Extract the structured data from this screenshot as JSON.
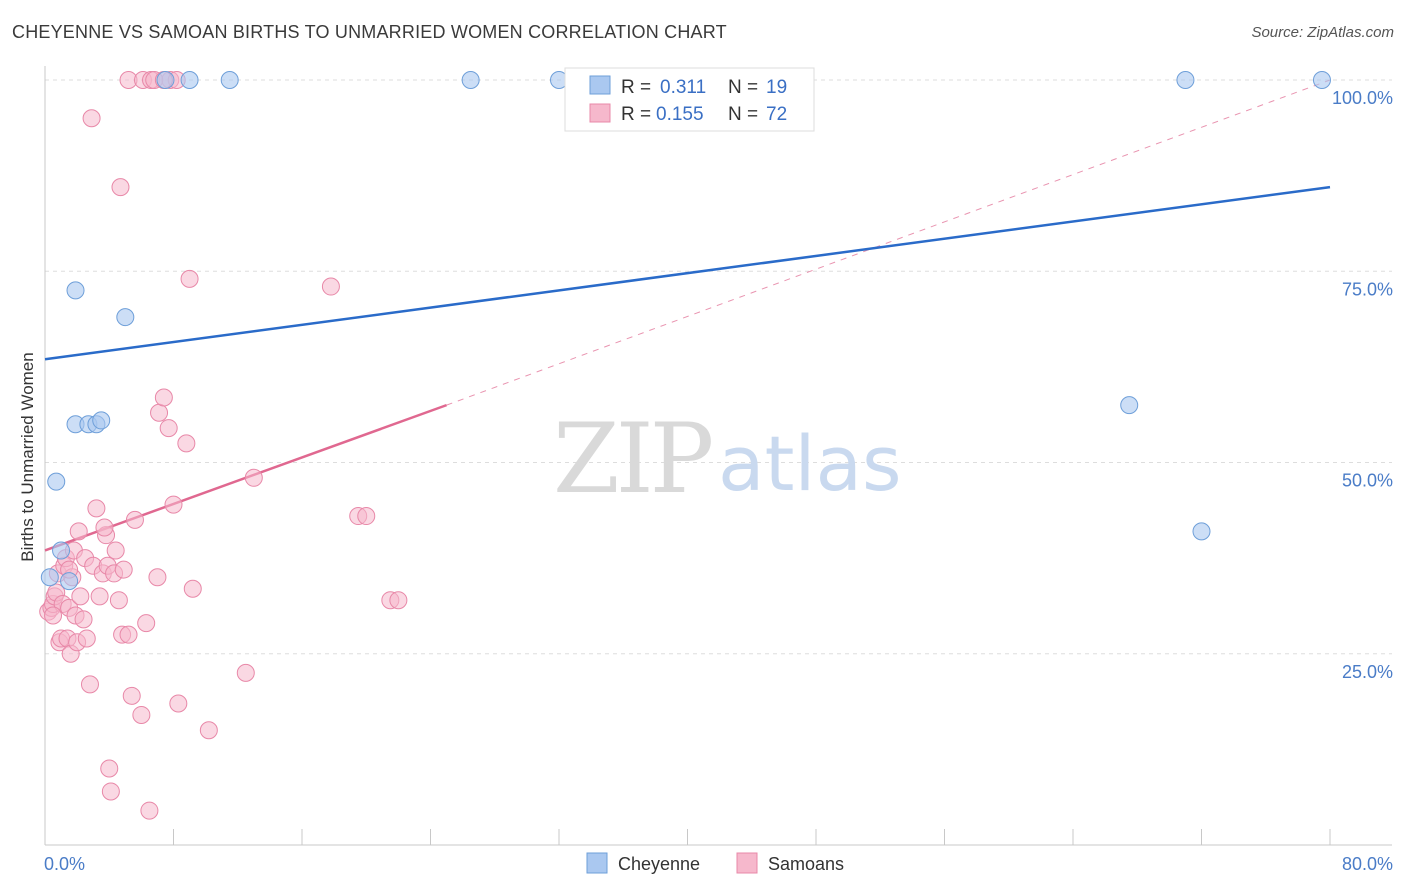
{
  "title": "CHEYENNE VS SAMOAN BIRTHS TO UNMARRIED WOMEN CORRELATION CHART",
  "source": "Source: ZipAtlas.com",
  "watermark": {
    "zip": "ZIP",
    "atlas": "atlas"
  },
  "colors": {
    "cheyenne_fill": "#aac8f0",
    "cheyenne_stroke": "#6e9fd9",
    "cheyenne_line": "#2a6bc9",
    "samoan_fill": "#f6b8cc",
    "samoan_stroke": "#e888a8",
    "samoan_line": "#e06890",
    "axis_label": "#4a7cc7",
    "grid": "#dddddd"
  },
  "legend": {
    "rows": [
      {
        "r_label": "R = ",
        "r_value": "0.311",
        "n_label": "N = ",
        "n_value": "19"
      },
      {
        "r_label": "R = ",
        "r_value": "0.155",
        "n_label": "N = ",
        "n_value": "72"
      }
    ]
  },
  "bottom_legend": [
    "Cheyenne",
    "Samoans"
  ],
  "chart_data": {
    "type": "scatter",
    "title": "CHEYENNE VS SAMOAN BIRTHS TO UNMARRIED WOMEN CORRELATION CHART",
    "xlabel": "",
    "ylabel": "Births to Unmarried Women",
    "xlim": [
      0,
      80
    ],
    "ylim": [
      0,
      100
    ],
    "x_tick_labels": [
      "0.0%",
      "80.0%"
    ],
    "y_ticks": [
      25,
      50,
      75,
      100
    ],
    "y_tick_labels": [
      "25.0%",
      "50.0%",
      "75.0%",
      "100.0%"
    ],
    "series": [
      {
        "name": "Cheyenne",
        "R": 0.311,
        "N": 19,
        "points": [
          [
            0.3,
            35.0
          ],
          [
            0.7,
            47.5
          ],
          [
            1.0,
            38.5
          ],
          [
            1.5,
            34.5
          ],
          [
            1.9,
            72.5
          ],
          [
            1.9,
            55.0
          ],
          [
            2.7,
            55.0
          ],
          [
            3.2,
            55.0
          ],
          [
            3.5,
            55.5
          ],
          [
            5.0,
            69.0
          ],
          [
            7.5,
            100.0
          ],
          [
            9.0,
            100.0
          ],
          [
            11.5,
            100.0
          ],
          [
            26.5,
            100.0
          ],
          [
            32.0,
            100.0
          ],
          [
            67.5,
            57.5
          ],
          [
            72.0,
            41.0
          ],
          [
            71.0,
            100.0
          ],
          [
            79.5,
            100.0
          ]
        ],
        "trend": {
          "x": [
            0,
            80
          ],
          "y": [
            63.5,
            86.0
          ],
          "style": "solid"
        }
      },
      {
        "name": "Samoans",
        "R": 0.155,
        "N": 72,
        "points": [
          [
            0.2,
            30.5
          ],
          [
            0.4,
            31.0
          ],
          [
            0.5,
            31.5
          ],
          [
            0.6,
            32.5
          ],
          [
            0.7,
            33.0
          ],
          [
            0.8,
            35.5
          ],
          [
            0.9,
            26.5
          ],
          [
            1.0,
            27.0
          ],
          [
            1.1,
            31.5
          ],
          [
            1.2,
            36.5
          ],
          [
            1.3,
            37.5
          ],
          [
            1.4,
            27.0
          ],
          [
            1.5,
            31.0
          ],
          [
            1.6,
            25.0
          ],
          [
            1.7,
            35.0
          ],
          [
            1.8,
            38.5
          ],
          [
            1.9,
            30.0
          ],
          [
            2.0,
            26.5
          ],
          [
            2.1,
            41.0
          ],
          [
            2.2,
            32.5
          ],
          [
            2.5,
            37.5
          ],
          [
            2.6,
            27.0
          ],
          [
            2.8,
            21.0
          ],
          [
            3.0,
            36.5
          ],
          [
            3.2,
            44.0
          ],
          [
            3.4,
            32.5
          ],
          [
            3.6,
            35.5
          ],
          [
            3.8,
            40.5
          ],
          [
            3.9,
            36.5
          ],
          [
            4.0,
            10.0
          ],
          [
            4.1,
            7.0
          ],
          [
            4.3,
            35.5
          ],
          [
            4.4,
            38.5
          ],
          [
            4.6,
            32.0
          ],
          [
            4.8,
            27.5
          ],
          [
            2.9,
            95.0
          ],
          [
            4.7,
            86.0
          ],
          [
            5.2,
            27.5
          ],
          [
            5.2,
            100.0
          ],
          [
            5.4,
            19.5
          ],
          [
            5.6,
            42.5
          ],
          [
            6.0,
            17.0
          ],
          [
            6.1,
            100.0
          ],
          [
            6.3,
            29.0
          ],
          [
            6.5,
            4.5
          ],
          [
            6.6,
            100.0
          ],
          [
            7.0,
            35.0
          ],
          [
            7.1,
            56.5
          ],
          [
            7.4,
            58.5
          ],
          [
            7.7,
            54.5
          ],
          [
            7.8,
            100.0
          ],
          [
            8.0,
            44.5
          ],
          [
            8.2,
            100.0
          ],
          [
            8.3,
            18.5
          ],
          [
            8.8,
            52.5
          ],
          [
            9.0,
            74.0
          ],
          [
            9.2,
            33.5
          ],
          [
            10.2,
            15.0
          ],
          [
            12.5,
            22.5
          ],
          [
            13.0,
            48.0
          ],
          [
            17.8,
            73.0
          ],
          [
            19.5,
            43.0
          ],
          [
            20.0,
            43.0
          ],
          [
            21.5,
            32.0
          ],
          [
            22.0,
            32.0
          ],
          [
            0.5,
            30.0
          ],
          [
            1.5,
            36.0
          ],
          [
            2.4,
            29.5
          ],
          [
            3.7,
            41.5
          ],
          [
            4.9,
            36.0
          ],
          [
            6.8,
            100.0
          ],
          [
            7.4,
            100.0
          ]
        ],
        "trend": {
          "x": [
            0,
            25
          ],
          "y": [
            38.5,
            57.5
          ],
          "style": "solid",
          "extension": {
            "x": [
              25,
              80
            ],
            "y": [
              57.5,
              100.0
            ],
            "style": "dashed"
          }
        }
      }
    ]
  }
}
